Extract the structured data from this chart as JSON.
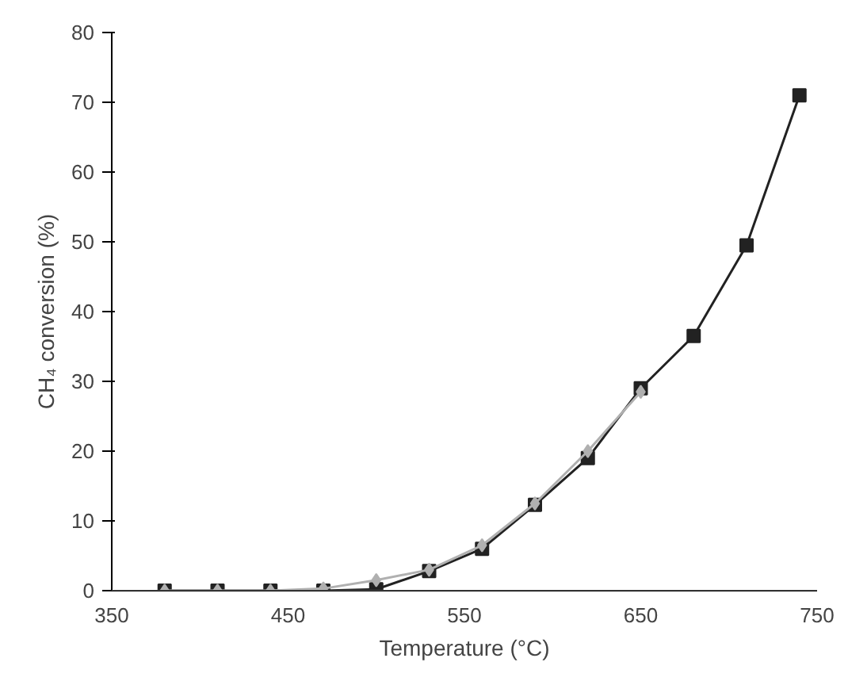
{
  "chart_data": {
    "type": "line",
    "xlabel": "Temperature (°C)",
    "ylabel": "CH₄ conversion (%)",
    "xlim": [
      350,
      750
    ],
    "xticks": [
      350,
      450,
      550,
      650,
      750
    ],
    "ylim": [
      0,
      80
    ],
    "yticks": [
      0,
      10,
      20,
      30,
      40,
      50,
      60,
      70,
      80
    ],
    "grid": false,
    "series": [
      {
        "color": "#222222",
        "marker": "square",
        "x": [
          380,
          410,
          440,
          470,
          500,
          530,
          560,
          590,
          620,
          650,
          680,
          710,
          740
        ],
        "values": [
          0,
          0,
          0,
          0,
          0.2,
          2.8,
          6,
          12.3,
          19,
          29,
          36.5,
          49.5,
          71
        ]
      },
      {
        "color": "#b0b0b0",
        "marker": "diamond",
        "x": [
          380,
          410,
          440,
          470,
          500,
          530,
          560,
          590,
          620,
          650
        ],
        "values": [
          0,
          0,
          0,
          0.3,
          1.5,
          3,
          6.5,
          12.5,
          20,
          28.5
        ]
      }
    ]
  }
}
